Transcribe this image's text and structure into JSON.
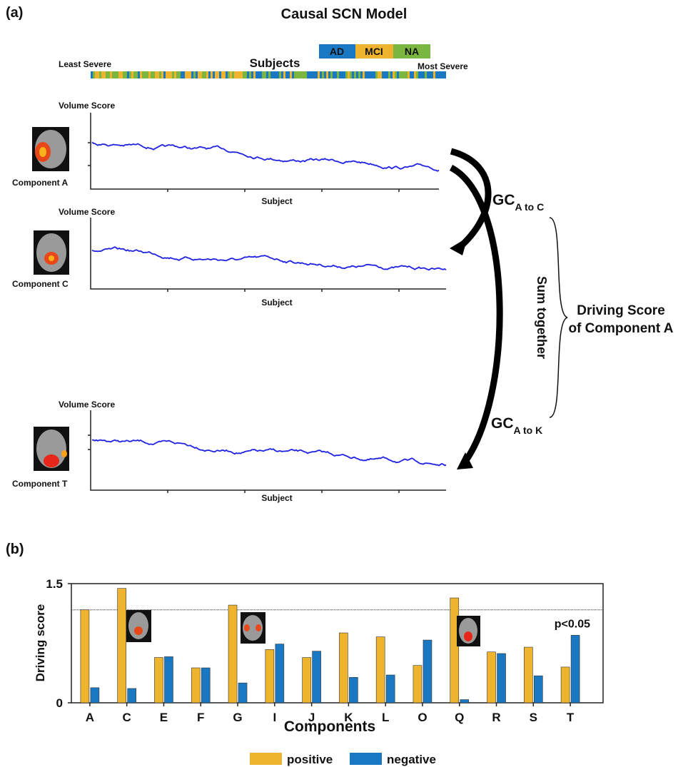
{
  "panel_a": {
    "label": "(a)",
    "title": "Causal SCN Model",
    "subjects_label": "Subjects",
    "least_severe": "Least Severe",
    "most_severe": "Most Severe",
    "groups": [
      "AD",
      "MCI",
      "NA"
    ],
    "plots": [
      {
        "ylabel": "Volume Score",
        "xlabel": "Subject",
        "component": "Component A"
      },
      {
        "ylabel": "Volume Score",
        "xlabel": "Subject",
        "component": "Component C"
      },
      {
        "ylabel": "Volume Score",
        "xlabel": "Subject",
        "component": "Component T"
      }
    ],
    "gc_main": [
      "GC",
      "GC"
    ],
    "gc_sub": [
      "A to C",
      "A to K"
    ],
    "sum_label": "Sum together",
    "driving_label": [
      "Driving Score",
      "of Component A"
    ]
  },
  "chart_data": {
    "type": "bar",
    "panel_label": "(b)",
    "ylabel": "Driving score",
    "xlabel": "Components",
    "categories": [
      "A",
      "C",
      "E",
      "F",
      "G",
      "I",
      "J",
      "K",
      "L",
      "O",
      "Q",
      "R",
      "S",
      "T"
    ],
    "series": [
      {
        "name": "positive",
        "color": "#eeb42e",
        "values": [
          1.17,
          1.44,
          0.57,
          0.44,
          1.23,
          0.67,
          0.57,
          0.88,
          0.83,
          0.47,
          1.32,
          0.64,
          0.7,
          0.45
        ]
      },
      {
        "name": "negative",
        "color": "#1a78c2",
        "values": [
          0.19,
          0.18,
          0.58,
          0.44,
          0.25,
          0.74,
          0.65,
          0.32,
          0.35,
          0.79,
          0.04,
          0.62,
          0.34,
          0.85
        ]
      }
    ],
    "threshold": 1.17,
    "threshold_label": "p<0.05",
    "ylim": [
      0,
      1.5
    ],
    "yticks": [
      0,
      1.5
    ]
  }
}
